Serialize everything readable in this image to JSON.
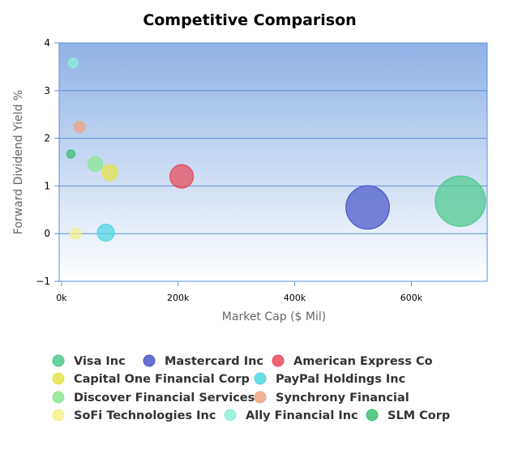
{
  "chart_data": {
    "type": "scatter",
    "title": "Competitive Comparison",
    "xlabel": "Market Cap ($ Mil)",
    "ylabel": "Forward Dividend Yield %",
    "xlim": [
      -4000,
      730000
    ],
    "ylim": [
      -1,
      4
    ],
    "xticks": [
      0,
      200000,
      400000,
      600000
    ],
    "xtick_labels": [
      "0k",
      "200k",
      "400k",
      "600k"
    ],
    "yticks": [
      -1,
      0,
      1,
      2,
      3,
      4
    ],
    "ytick_labels": [
      "−1",
      "0",
      "1",
      "2",
      "3",
      "4"
    ],
    "grid": true,
    "legend_position": "bottom",
    "series": [
      {
        "name": "Visa Inc",
        "x": 684000,
        "y": 0.68,
        "size": 55000,
        "color": "#4dc98d"
      },
      {
        "name": "Mastercard Inc",
        "x": 525000,
        "y": 0.55,
        "size": 41000,
        "color": "#4a57c7"
      },
      {
        "name": "American Express Co",
        "x": 206000,
        "y": 1.2,
        "size": 12000,
        "color": "#e84a5a"
      },
      {
        "name": "Capital One Financial Corp",
        "x": 83000,
        "y": 1.28,
        "size": 5400,
        "color": "#e3e44a"
      },
      {
        "name": "PayPal Holdings Inc",
        "x": 76000,
        "y": 0.02,
        "size": 6200,
        "color": "#4dd7e3"
      },
      {
        "name": "Discover Financial Services",
        "x": 58000,
        "y": 1.46,
        "size": 4600,
        "color": "#8ae68f"
      },
      {
        "name": "Synchrony Financial",
        "x": 31000,
        "y": 2.24,
        "size": 2600,
        "color": "#f0a483"
      },
      {
        "name": "SoFi Technologies Inc",
        "x": 24000,
        "y": 0.0,
        "size": 2400,
        "color": "#f6f08a"
      },
      {
        "name": "Ally Financial Inc",
        "x": 20000,
        "y": 3.58,
        "size": 1900,
        "color": "#8ff0d8"
      },
      {
        "name": "SLM Corp",
        "x": 16000,
        "y": 1.67,
        "size": 800,
        "color": "#3fbf72"
      }
    ]
  }
}
